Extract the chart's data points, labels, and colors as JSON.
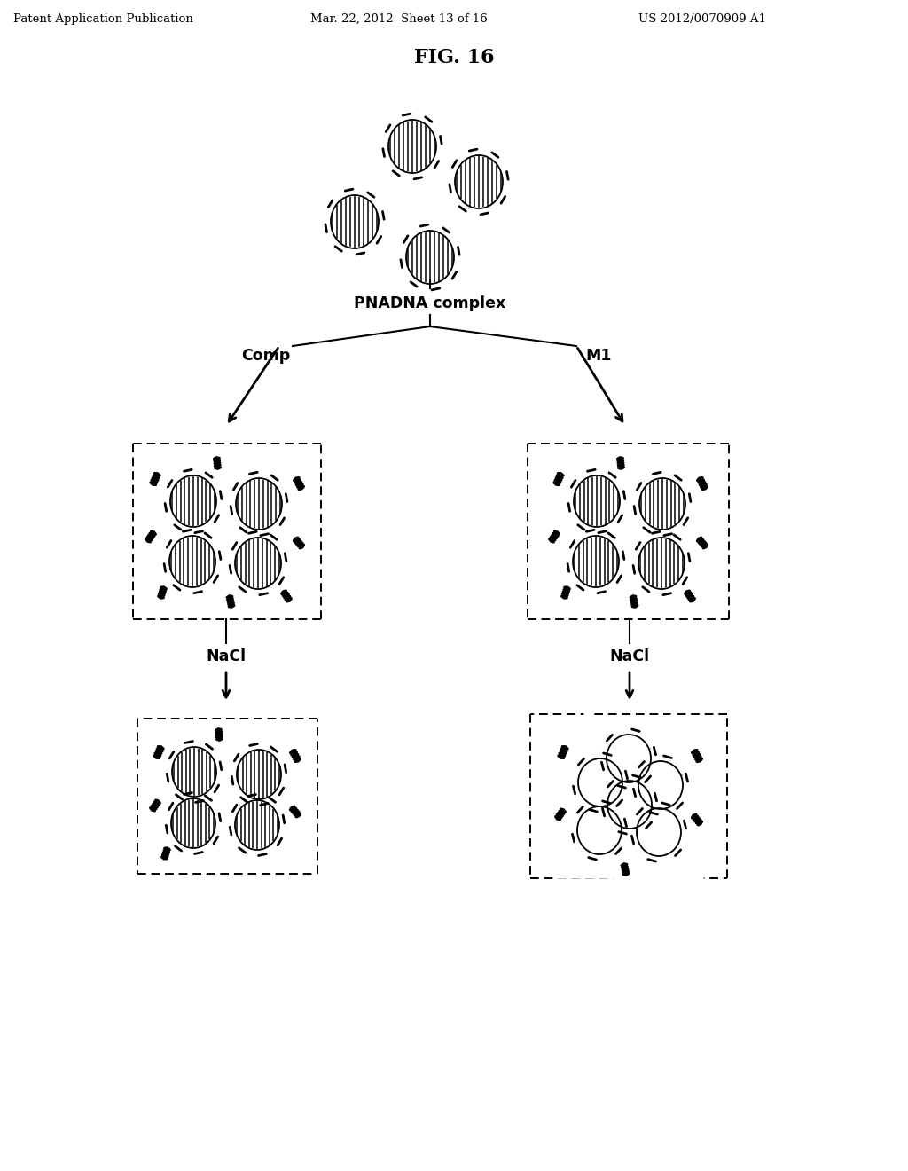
{
  "header_left": "Patent Application Publication",
  "header_center": "Mar. 22, 2012  Sheet 13 of 16",
  "header_right": "US 2012/0070909 A1",
  "fig_title": "FIG. 16",
  "label_pnadna": "PNADNA complex",
  "label_comp": "Comp",
  "label_m1": "M1",
  "label_nacl1": "NaCl",
  "label_nacl2": "NaCl"
}
